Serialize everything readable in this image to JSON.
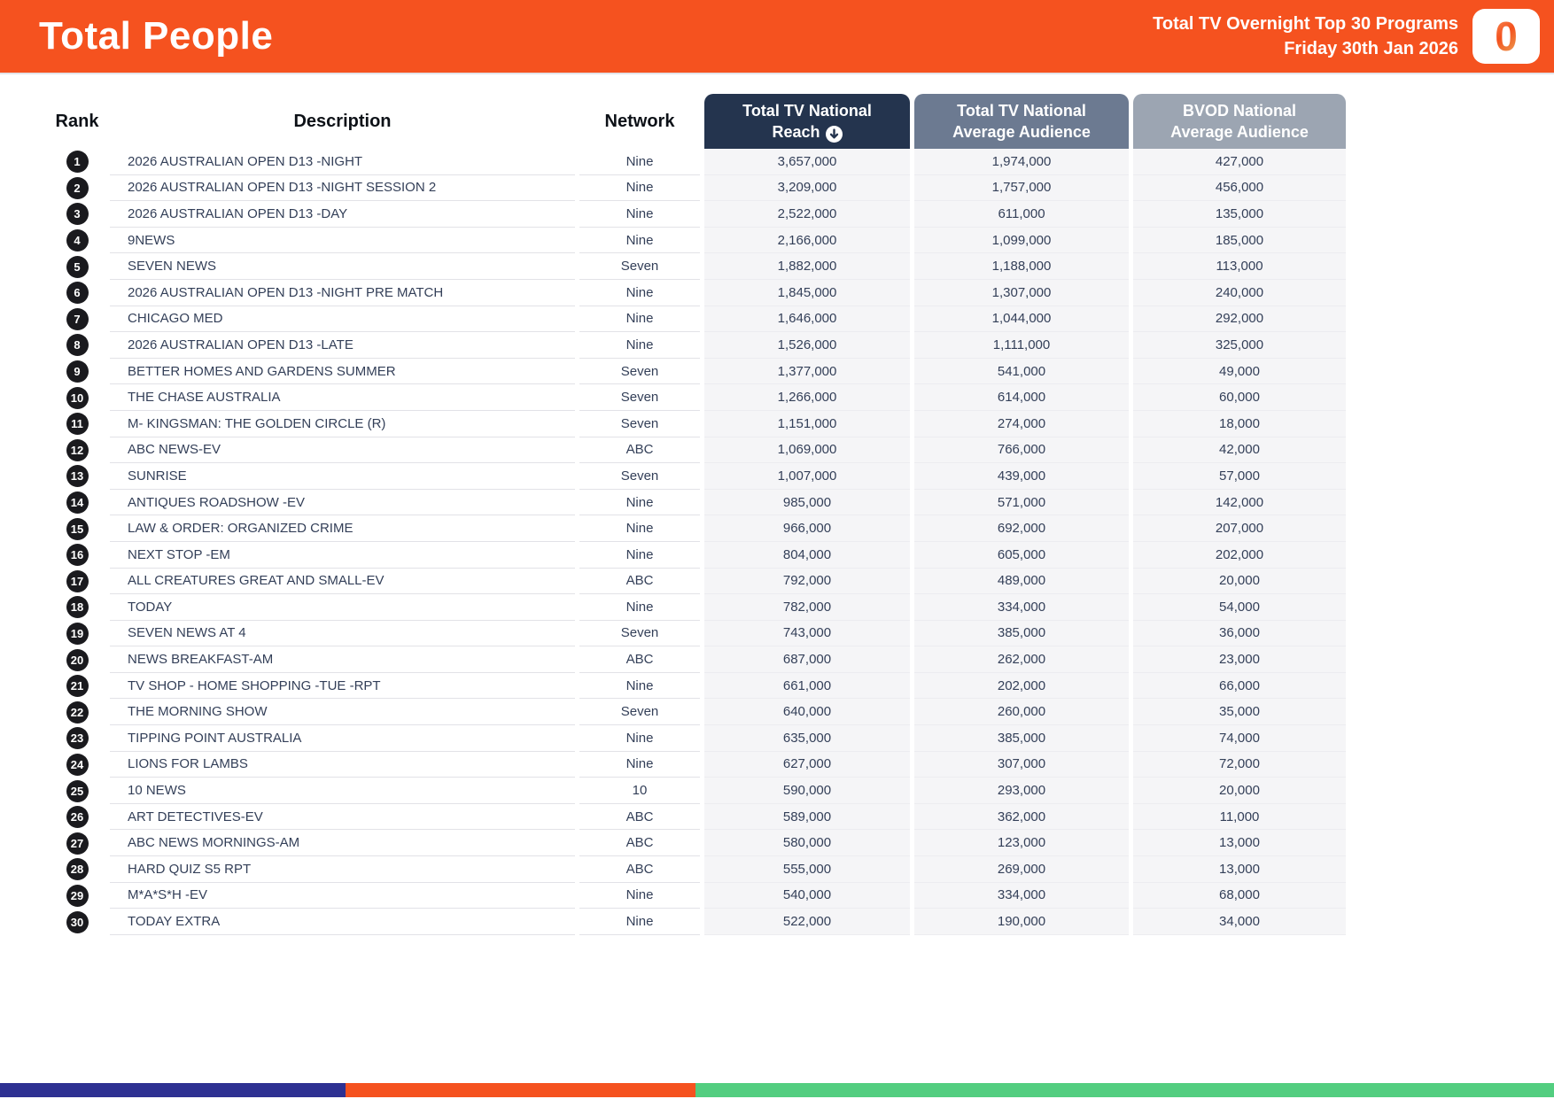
{
  "header": {
    "title": "Total People",
    "report_line1": "Total TV Overnight Top 30 Programs",
    "report_line2": "Friday 30th Jan 2026",
    "logo_character": "0"
  },
  "table": {
    "headers": {
      "rank": "Rank",
      "description": "Description",
      "network": "Network",
      "reach_line1": "Total TV National",
      "reach_line2": "Reach",
      "avg_line1": "Total TV National",
      "avg_line2": "Average Audience",
      "bvod_line1": "BVOD National",
      "bvod_line2": "Average Audience"
    },
    "sort_icon": "circle-arrow-down"
  },
  "colors": {
    "brand_orange": "#F5521F",
    "chip_navy": "#24344E",
    "chip_slate": "#6C7A91",
    "chip_gray": "#9CA5B2",
    "numeric_cell_bg": "#F5F5F7",
    "rank_badge": "#1A1A1E",
    "footer_blue": "#2E3192",
    "footer_orange": "#F5521F",
    "footer_green": "#53CE80"
  },
  "chart_data": {
    "type": "table",
    "title": "Total People",
    "subtitle": "Total TV Overnight Top 30 Programs",
    "date": "Friday 30th Jan 2026",
    "columns": [
      "Rank",
      "Description",
      "Network",
      "Total TV National Reach",
      "Total TV National Average Audience",
      "BVOD National Average Audience"
    ],
    "sorted_by": "Total TV National Reach",
    "rows": [
      [
        1,
        "2026 AUSTRALIAN OPEN D13 -NIGHT",
        "Nine",
        "3,657,000",
        "1,974,000",
        "427,000"
      ],
      [
        2,
        "2026 AUSTRALIAN OPEN D13 -NIGHT SESSION 2",
        "Nine",
        "3,209,000",
        "1,757,000",
        "456,000"
      ],
      [
        3,
        "2026 AUSTRALIAN OPEN D13 -DAY",
        "Nine",
        "2,522,000",
        "611,000",
        "135,000"
      ],
      [
        4,
        "9NEWS",
        "Nine",
        "2,166,000",
        "1,099,000",
        "185,000"
      ],
      [
        5,
        "SEVEN NEWS",
        "Seven",
        "1,882,000",
        "1,188,000",
        "113,000"
      ],
      [
        6,
        "2026 AUSTRALIAN OPEN D13 -NIGHT PRE MATCH",
        "Nine",
        "1,845,000",
        "1,307,000",
        "240,000"
      ],
      [
        7,
        "CHICAGO MED",
        "Nine",
        "1,646,000",
        "1,044,000",
        "292,000"
      ],
      [
        8,
        "2026 AUSTRALIAN OPEN D13 -LATE",
        "Nine",
        "1,526,000",
        "1,111,000",
        "325,000"
      ],
      [
        9,
        "BETTER HOMES AND GARDENS SUMMER",
        "Seven",
        "1,377,000",
        "541,000",
        "49,000"
      ],
      [
        10,
        "THE CHASE AUSTRALIA",
        "Seven",
        "1,266,000",
        "614,000",
        "60,000"
      ],
      [
        11,
        "M- KINGSMAN: THE GOLDEN CIRCLE (R)",
        "Seven",
        "1,151,000",
        "274,000",
        "18,000"
      ],
      [
        12,
        "ABC NEWS-EV",
        "ABC",
        "1,069,000",
        "766,000",
        "42,000"
      ],
      [
        13,
        "SUNRISE",
        "Seven",
        "1,007,000",
        "439,000",
        "57,000"
      ],
      [
        14,
        "ANTIQUES ROADSHOW -EV",
        "Nine",
        "985,000",
        "571,000",
        "142,000"
      ],
      [
        15,
        "LAW & ORDER: ORGANIZED CRIME",
        "Nine",
        "966,000",
        "692,000",
        "207,000"
      ],
      [
        16,
        "NEXT STOP -EM",
        "Nine",
        "804,000",
        "605,000",
        "202,000"
      ],
      [
        17,
        "ALL CREATURES GREAT AND SMALL-EV",
        "ABC",
        "792,000",
        "489,000",
        "20,000"
      ],
      [
        18,
        "TODAY",
        "Nine",
        "782,000",
        "334,000",
        "54,000"
      ],
      [
        19,
        "SEVEN NEWS AT 4",
        "Seven",
        "743,000",
        "385,000",
        "36,000"
      ],
      [
        20,
        "NEWS BREAKFAST-AM",
        "ABC",
        "687,000",
        "262,000",
        "23,000"
      ],
      [
        21,
        "TV SHOP - HOME SHOPPING -TUE -RPT",
        "Nine",
        "661,000",
        "202,000",
        "66,000"
      ],
      [
        22,
        "THE MORNING SHOW",
        "Seven",
        "640,000",
        "260,000",
        "35,000"
      ],
      [
        23,
        "TIPPING POINT AUSTRALIA",
        "Nine",
        "635,000",
        "385,000",
        "74,000"
      ],
      [
        24,
        "LIONS FOR LAMBS",
        "Nine",
        "627,000",
        "307,000",
        "72,000"
      ],
      [
        25,
        "10 NEWS",
        "10",
        "590,000",
        "293,000",
        "20,000"
      ],
      [
        26,
        "ART DETECTIVES-EV",
        "ABC",
        "589,000",
        "362,000",
        "11,000"
      ],
      [
        27,
        "ABC NEWS MORNINGS-AM",
        "ABC",
        "580,000",
        "123,000",
        "13,000"
      ],
      [
        28,
        "HARD QUIZ S5 RPT",
        "ABC",
        "555,000",
        "269,000",
        "13,000"
      ],
      [
        29,
        "M*A*S*H -EV",
        "Nine",
        "540,000",
        "334,000",
        "68,000"
      ],
      [
        30,
        "TODAY EXTRA",
        "Nine",
        "522,000",
        "190,000",
        "34,000"
      ]
    ]
  }
}
